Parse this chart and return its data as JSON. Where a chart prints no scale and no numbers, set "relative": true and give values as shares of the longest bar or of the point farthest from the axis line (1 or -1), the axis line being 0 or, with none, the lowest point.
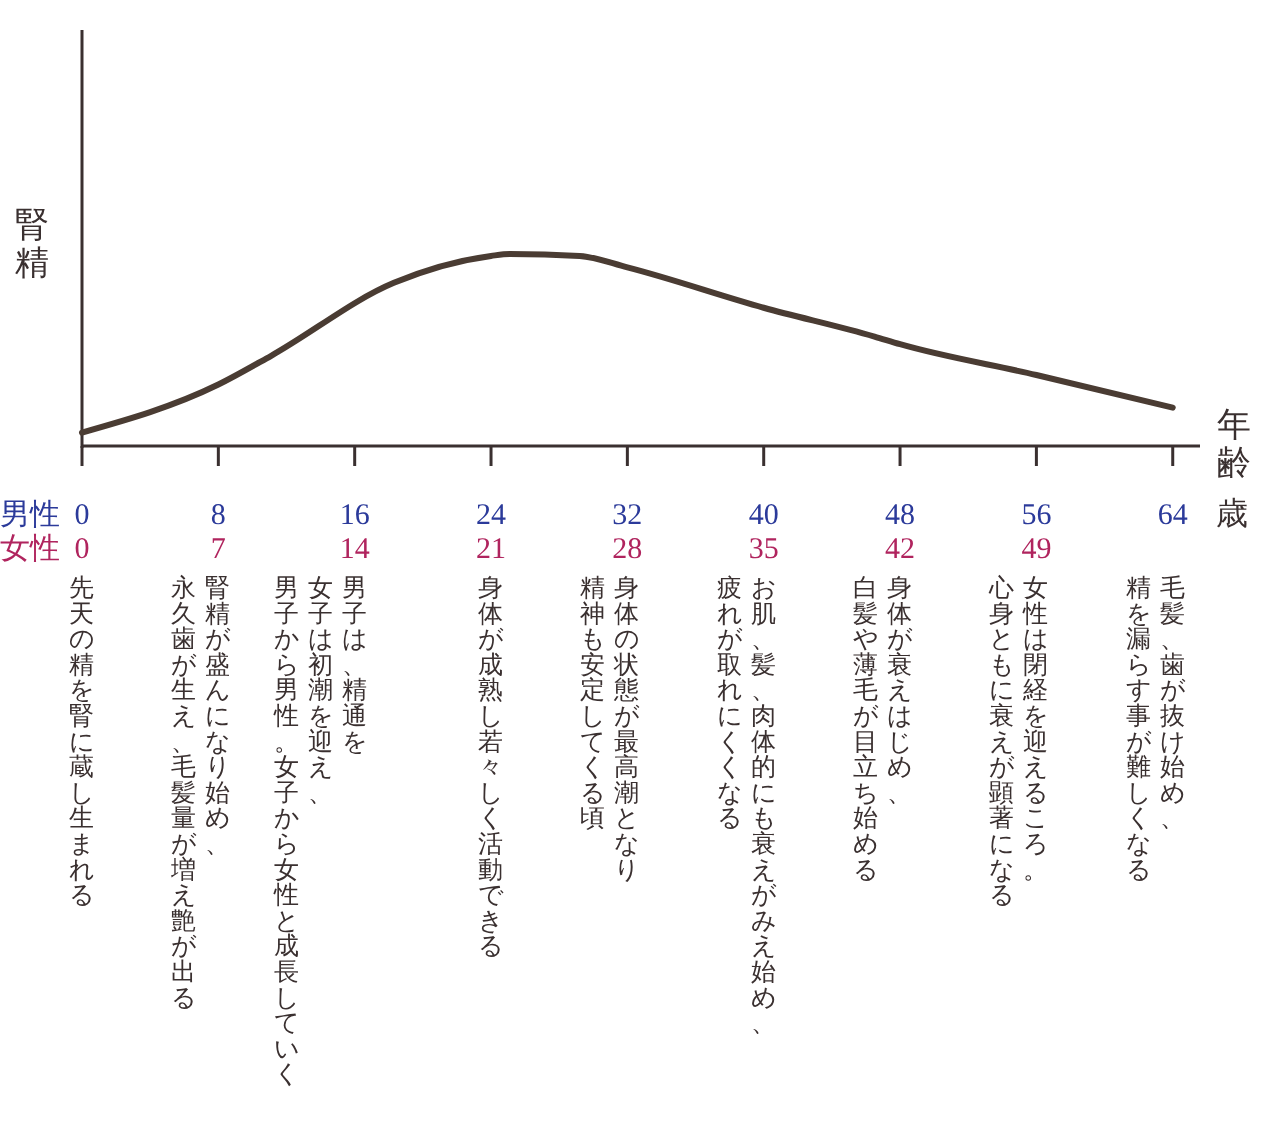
{
  "chart_data": {
    "type": "line",
    "relative": true,
    "ylabel": "腎精",
    "xlabel": "男性",
    "x2label": "女性",
    "marker": "none",
    "line_style": "solid",
    "grid": false,
    "x": [
      0,
      8,
      11.1,
      18.3,
      24,
      25.1,
      29.2,
      32,
      40,
      46.5,
      48,
      56,
      64
    ],
    "series": [
      {
        "color": "#4a3c33",
        "values": [
          0.07,
          0.32,
          0.47,
          0.85,
          0.99,
          1,
          0.99,
          0.93,
          0.72,
          0.57,
          0.53,
          0.37,
          0.2
        ]
      }
    ],
    "xlim": [
      0,
      65.6
    ],
    "xticks": [
      0,
      8,
      16,
      24,
      32,
      40,
      48,
      56,
      64
    ],
    "x2lim": [
      0,
      57.4
    ],
    "x2ticks": [
      0,
      7,
      14,
      21,
      28,
      35,
      42,
      49
    ],
    "annotations": [
      "年齢",
      "歳",
      "先天の精を腎に蔵し生まれる",
      "腎精が盛んになり始め、",
      "永久歯が生え、毛髪量が増え艶が出る",
      "男子は、精通を",
      "女子は初潮を迎え、",
      "男子から男性。女子から女性と成長していく",
      "身体が成熟し若々しく活動できる",
      "身体の状態が最高潮となり",
      "精神も安定してくる頃",
      "お肌、髪、肉体的にも衰えがみえ始め、",
      "疲れが取れにくくなる",
      "身体が衰えはじめ、",
      "白髪や薄毛が目立ち始める",
      "女性は閉経を迎えるころ。",
      "心身ともに衰えが顕著になる",
      "毛髪、歯が抜け始め、",
      "精を漏らす事が難しくなる"
    ]
  }
}
